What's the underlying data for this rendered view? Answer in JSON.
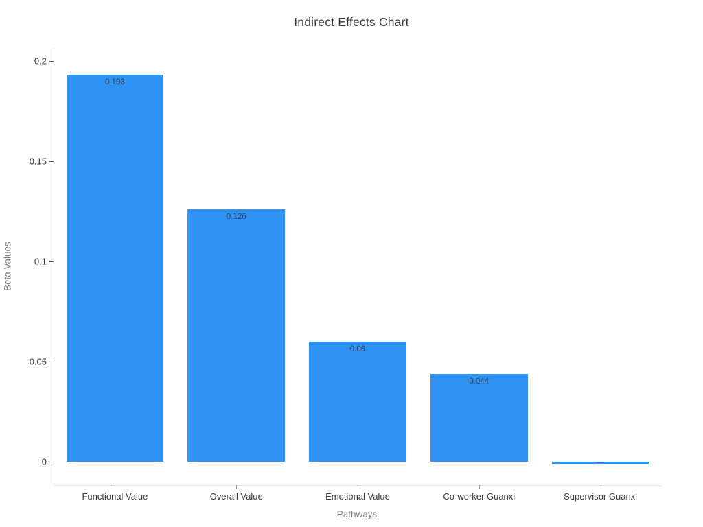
{
  "title": "Indirect Effects Chart",
  "chart_data": {
    "type": "bar",
    "title": "Indirect Effects Chart",
    "xlabel": "Pathways",
    "ylabel": "Beta Values",
    "categories": [
      "Functional Value",
      "Overall Value",
      "Emotional Value",
      "Co-worker Guanxi",
      "Supervisor Guanxi"
    ],
    "values": [
      0.193,
      0.126,
      0.06,
      0.044,
      -0.001
    ],
    "bar_labels": [
      "0.193",
      "0.126",
      "0.06",
      "0.044",
      "-0.001"
    ],
    "yticks": [
      0,
      0.05,
      0.1,
      0.15,
      0.2
    ],
    "ytick_labels": [
      "0",
      "0.05",
      "0.1",
      "0.15",
      "0.2"
    ],
    "ylim": [
      -0.0116,
      0.2065
    ],
    "bar_color": "#2E93F5",
    "bar_width_fraction": 0.8,
    "grid": false,
    "legend": false,
    "background": "#ffffff"
  }
}
